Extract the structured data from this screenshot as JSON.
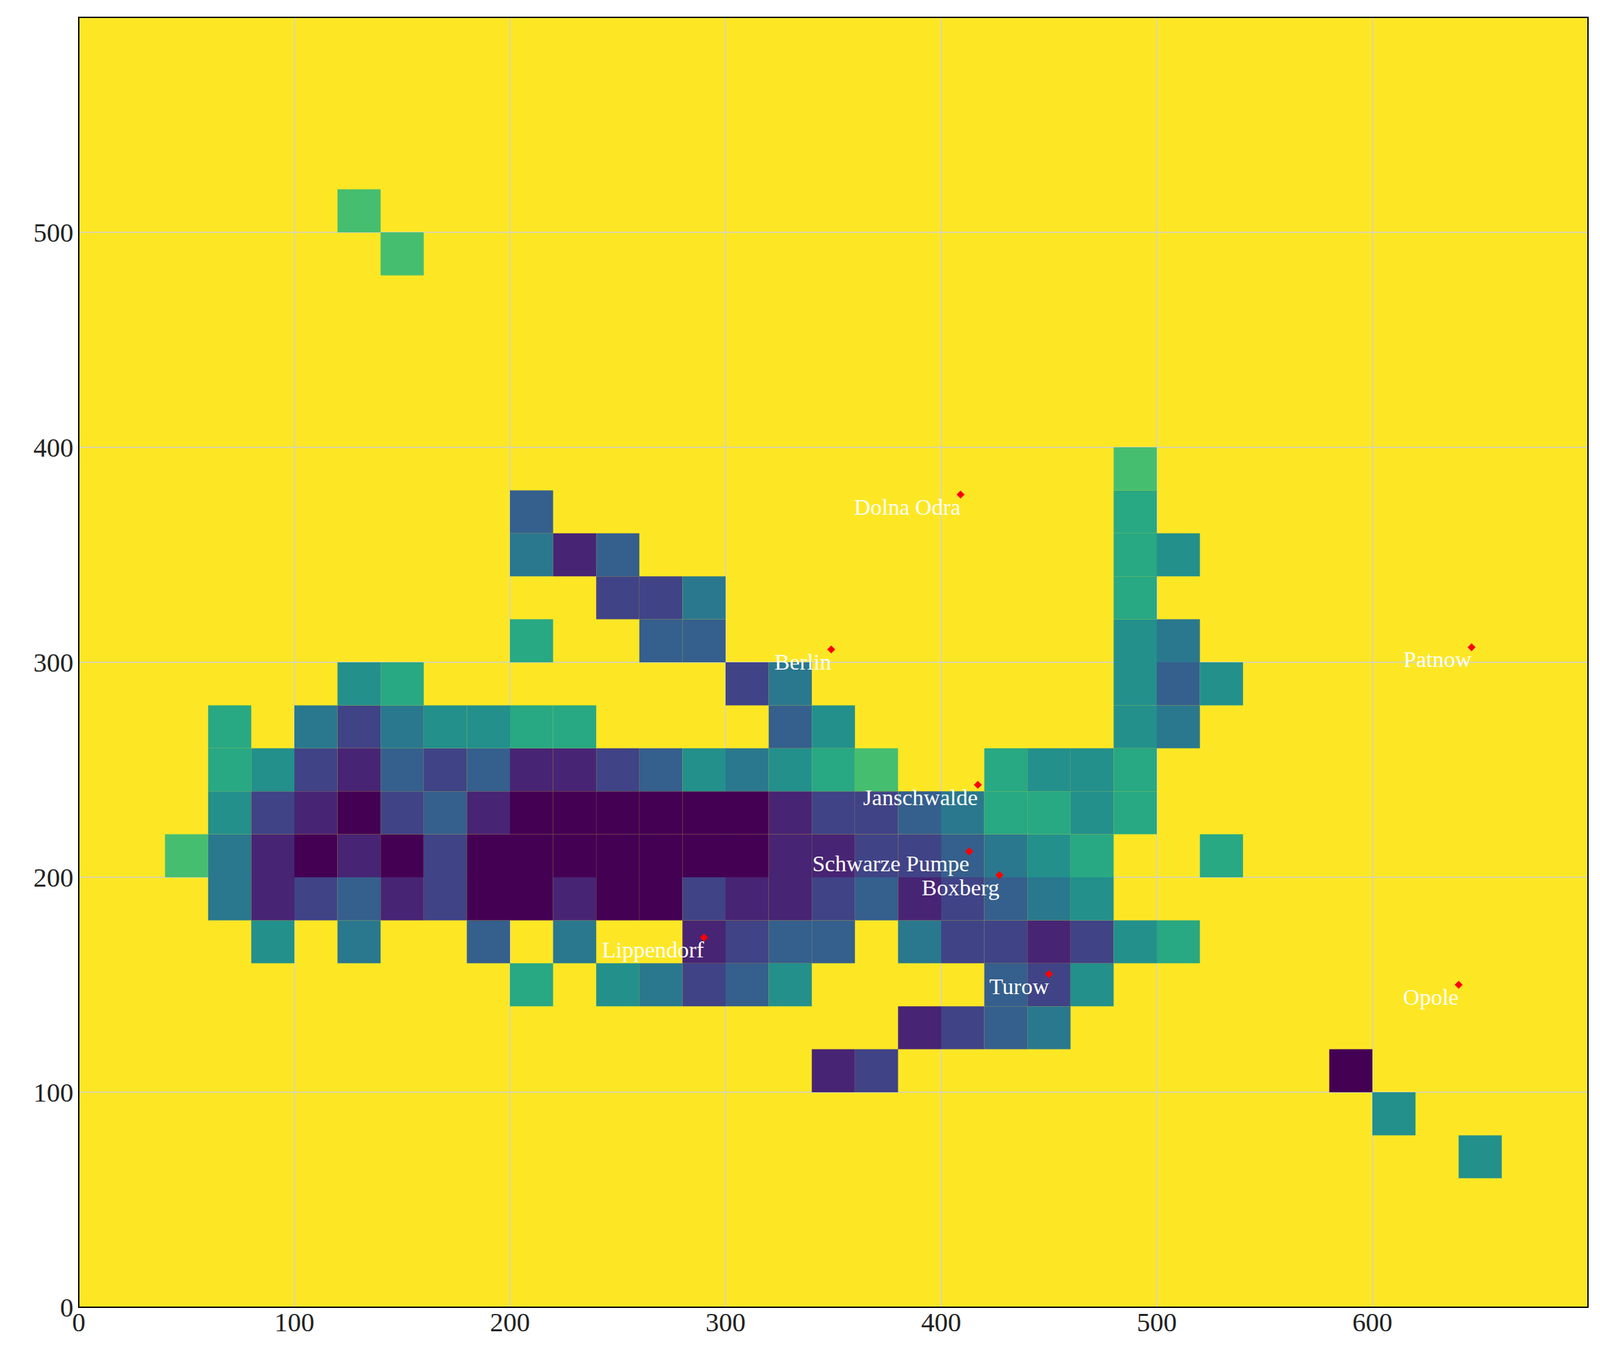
{
  "chart_data": {
    "type": "heatmap",
    "xlim": [
      0,
      700
    ],
    "ylim": [
      0,
      600
    ],
    "xticks": [
      0,
      100,
      200,
      300,
      400,
      500,
      600
    ],
    "yticks": [
      0,
      100,
      200,
      300,
      400,
      500
    ],
    "grid": true,
    "cell_size": 20,
    "vlim": [
      0,
      1
    ],
    "marker": "diamond",
    "color": "#ff0000",
    "cells": [
      [
        340,
        100,
        0.1
      ],
      [
        360,
        100,
        0.2
      ],
      [
        380,
        120,
        0.1
      ],
      [
        400,
        120,
        0.2
      ],
      [
        420,
        120,
        0.3
      ],
      [
        440,
        120,
        0.4
      ],
      [
        200,
        140,
        0.6
      ],
      [
        240,
        140,
        0.5
      ],
      [
        260,
        140,
        0.4
      ],
      [
        280,
        140,
        0.2
      ],
      [
        300,
        140,
        0.3
      ],
      [
        320,
        140,
        0.5
      ],
      [
        420,
        140,
        0.3
      ],
      [
        440,
        140,
        0.2
      ],
      [
        460,
        140,
        0.5
      ],
      [
        80,
        160,
        0.5
      ],
      [
        120,
        160,
        0.4
      ],
      [
        180,
        160,
        0.3
      ],
      [
        220,
        160,
        0.4
      ],
      [
        280,
        160,
        0.1
      ],
      [
        300,
        160,
        0.2
      ],
      [
        320,
        160,
        0.3
      ],
      [
        340,
        160,
        0.3
      ],
      [
        380,
        160,
        0.4
      ],
      [
        400,
        160,
        0.2
      ],
      [
        420,
        160,
        0.2
      ],
      [
        440,
        160,
        0.1
      ],
      [
        460,
        160,
        0.2
      ],
      [
        480,
        160,
        0.5
      ],
      [
        500,
        160,
        0.6
      ],
      [
        60,
        180,
        0.4
      ],
      [
        80,
        180,
        0.1
      ],
      [
        100,
        180,
        0.2
      ],
      [
        120,
        180,
        0.3
      ],
      [
        140,
        180,
        0.1
      ],
      [
        160,
        180,
        0.2
      ],
      [
        180,
        180,
        0.0
      ],
      [
        200,
        180,
        0.0
      ],
      [
        220,
        180,
        0.1
      ],
      [
        240,
        180,
        0.0
      ],
      [
        260,
        180,
        0.0
      ],
      [
        280,
        180,
        0.2
      ],
      [
        300,
        180,
        0.1
      ],
      [
        320,
        180,
        0.1
      ],
      [
        340,
        180,
        0.2
      ],
      [
        360,
        180,
        0.3
      ],
      [
        380,
        180,
        0.1
      ],
      [
        400,
        180,
        0.2
      ],
      [
        420,
        180,
        0.3
      ],
      [
        440,
        180,
        0.4
      ],
      [
        460,
        180,
        0.5
      ],
      [
        40,
        200,
        0.7
      ],
      [
        60,
        200,
        0.4
      ],
      [
        80,
        200,
        0.1
      ],
      [
        100,
        200,
        0.0
      ],
      [
        120,
        200,
        0.1
      ],
      [
        140,
        200,
        0.0
      ],
      [
        160,
        200,
        0.2
      ],
      [
        180,
        200,
        0.0
      ],
      [
        200,
        200,
        0.0
      ],
      [
        220,
        200,
        0.0
      ],
      [
        240,
        200,
        0.0
      ],
      [
        260,
        200,
        0.0
      ],
      [
        280,
        200,
        0.0
      ],
      [
        300,
        200,
        0.0
      ],
      [
        320,
        200,
        0.1
      ],
      [
        340,
        200,
        0.1
      ],
      [
        360,
        200,
        0.2
      ],
      [
        380,
        200,
        0.2
      ],
      [
        400,
        200,
        0.3
      ],
      [
        420,
        200,
        0.4
      ],
      [
        440,
        200,
        0.5
      ],
      [
        460,
        200,
        0.6
      ],
      [
        60,
        220,
        0.5
      ],
      [
        80,
        220,
        0.2
      ],
      [
        100,
        220,
        0.1
      ],
      [
        120,
        220,
        0.0
      ],
      [
        140,
        220,
        0.2
      ],
      [
        160,
        220,
        0.3
      ],
      [
        180,
        220,
        0.1
      ],
      [
        200,
        220,
        0.0
      ],
      [
        220,
        220,
        0.0
      ],
      [
        240,
        220,
        0.0
      ],
      [
        260,
        220,
        0.0
      ],
      [
        280,
        220,
        0.0
      ],
      [
        300,
        220,
        0.0
      ],
      [
        320,
        220,
        0.1
      ],
      [
        340,
        220,
        0.2
      ],
      [
        360,
        220,
        0.2
      ],
      [
        380,
        220,
        0.3
      ],
      [
        400,
        220,
        0.4
      ],
      [
        420,
        220,
        0.6
      ],
      [
        440,
        220,
        0.6
      ],
      [
        460,
        220,
        0.5
      ],
      [
        480,
        220,
        0.6
      ],
      [
        60,
        240,
        0.6
      ],
      [
        80,
        240,
        0.5
      ],
      [
        100,
        240,
        0.2
      ],
      [
        120,
        240,
        0.1
      ],
      [
        140,
        240,
        0.3
      ],
      [
        160,
        240,
        0.2
      ],
      [
        180,
        240,
        0.3
      ],
      [
        200,
        240,
        0.1
      ],
      [
        220,
        240,
        0.1
      ],
      [
        240,
        240,
        0.2
      ],
      [
        260,
        240,
        0.3
      ],
      [
        280,
        240,
        0.5
      ],
      [
        300,
        240,
        0.4
      ],
      [
        320,
        240,
        0.5
      ],
      [
        340,
        240,
        0.6
      ],
      [
        360,
        240,
        0.7
      ],
      [
        420,
        240,
        0.6
      ],
      [
        440,
        240,
        0.5
      ],
      [
        460,
        240,
        0.5
      ],
      [
        480,
        240,
        0.6
      ],
      [
        60,
        260,
        0.6
      ],
      [
        100,
        260,
        0.4
      ],
      [
        120,
        260,
        0.2
      ],
      [
        140,
        260,
        0.4
      ],
      [
        160,
        260,
        0.5
      ],
      [
        180,
        260,
        0.5
      ],
      [
        200,
        260,
        0.6
      ],
      [
        220,
        260,
        0.6
      ],
      [
        320,
        260,
        0.3
      ],
      [
        340,
        260,
        0.5
      ],
      [
        480,
        260,
        0.5
      ],
      [
        500,
        260,
        0.4
      ],
      [
        120,
        280,
        0.5
      ],
      [
        140,
        280,
        0.6
      ],
      [
        300,
        280,
        0.2
      ],
      [
        320,
        280,
        0.4
      ],
      [
        480,
        280,
        0.5
      ],
      [
        500,
        280,
        0.3
      ],
      [
        520,
        280,
        0.5
      ],
      [
        200,
        300,
        0.6
      ],
      [
        260,
        300,
        0.3
      ],
      [
        280,
        300,
        0.3
      ],
      [
        480,
        300,
        0.5
      ],
      [
        500,
        300,
        0.4
      ],
      [
        240,
        320,
        0.2
      ],
      [
        260,
        320,
        0.2
      ],
      [
        280,
        320,
        0.4
      ],
      [
        480,
        320,
        0.6
      ],
      [
        200,
        340,
        0.4
      ],
      [
        220,
        340,
        0.1
      ],
      [
        240,
        340,
        0.3
      ],
      [
        480,
        340,
        0.6
      ],
      [
        500,
        340,
        0.5
      ],
      [
        200,
        360,
        0.3
      ],
      [
        480,
        360,
        0.6
      ],
      [
        480,
        380,
        0.7
      ],
      [
        580,
        100,
        0.0
      ],
      [
        600,
        80,
        0.5
      ],
      [
        640,
        60,
        0.5
      ],
      [
        520,
        200,
        0.6
      ],
      [
        140,
        480,
        0.7
      ],
      [
        120,
        500,
        0.7
      ]
    ],
    "points": [
      {
        "name": "Dolna Odra",
        "x": 409,
        "y": 378
      },
      {
        "name": "Berlin",
        "x": 349,
        "y": 306
      },
      {
        "name": "Patnow",
        "x": 646,
        "y": 307
      },
      {
        "name": "Janschwalde",
        "x": 417,
        "y": 243
      },
      {
        "name": "Schwarze Pumpe",
        "x": 413,
        "y": 212
      },
      {
        "name": "Boxberg",
        "x": 427,
        "y": 201
      },
      {
        "name": "Lippendorf",
        "x": 290,
        "y": 172
      },
      {
        "name": "Turow",
        "x": 450,
        "y": 155
      },
      {
        "name": "Opole",
        "x": 640,
        "y": 150
      }
    ]
  }
}
